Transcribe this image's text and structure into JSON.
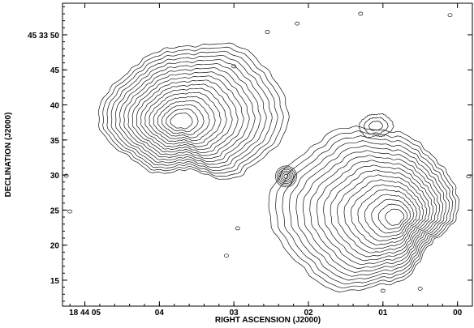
{
  "chart_data": {
    "type": "contour",
    "xlabel": "RIGHT ASCENSION (J2000)",
    "ylabel": "DECLINATION (J2000)",
    "x_ticks": [
      {
        "label": "18 44 05",
        "ra_seconds": 5
      },
      {
        "label": "04",
        "ra_seconds": 4
      },
      {
        "label": "03",
        "ra_seconds": 3
      },
      {
        "label": "02",
        "ra_seconds": 2
      },
      {
        "label": "01",
        "ra_seconds": 1
      },
      {
        "label": "00",
        "ra_seconds": 0
      }
    ],
    "y_ticks": [
      {
        "label": "45 33 50",
        "dec_arcsec": 50
      },
      {
        "label": "45",
        "dec_arcsec": 45
      },
      {
        "label": "40",
        "dec_arcsec": 40
      },
      {
        "label": "35",
        "dec_arcsec": 35
      },
      {
        "label": "30",
        "dec_arcsec": 30
      },
      {
        "label": "25",
        "dec_arcsec": 25
      },
      {
        "label": "20",
        "dec_arcsec": 20
      },
      {
        "label": "15",
        "dec_arcsec": 15
      }
    ],
    "x_range_ra_seconds": [
      5.3,
      -0.2
    ],
    "y_range_dec_arcsec": [
      11.3,
      54.5
    ],
    "contour_levels": 18,
    "grid": false,
    "components": [
      {
        "name": "north-east lobe",
        "ra_seconds": 3.6,
        "dec_arcsec": 38.2
      },
      {
        "name": "core",
        "ra_seconds": 2.3,
        "dec_arcsec": 29.8
      },
      {
        "name": "south-west lobe",
        "ra_seconds": 0.9,
        "dec_arcsec": 25.6
      },
      {
        "name": "south-west secondary peak",
        "ra_seconds": 1.1,
        "dec_arcsec": 37.0
      }
    ]
  }
}
